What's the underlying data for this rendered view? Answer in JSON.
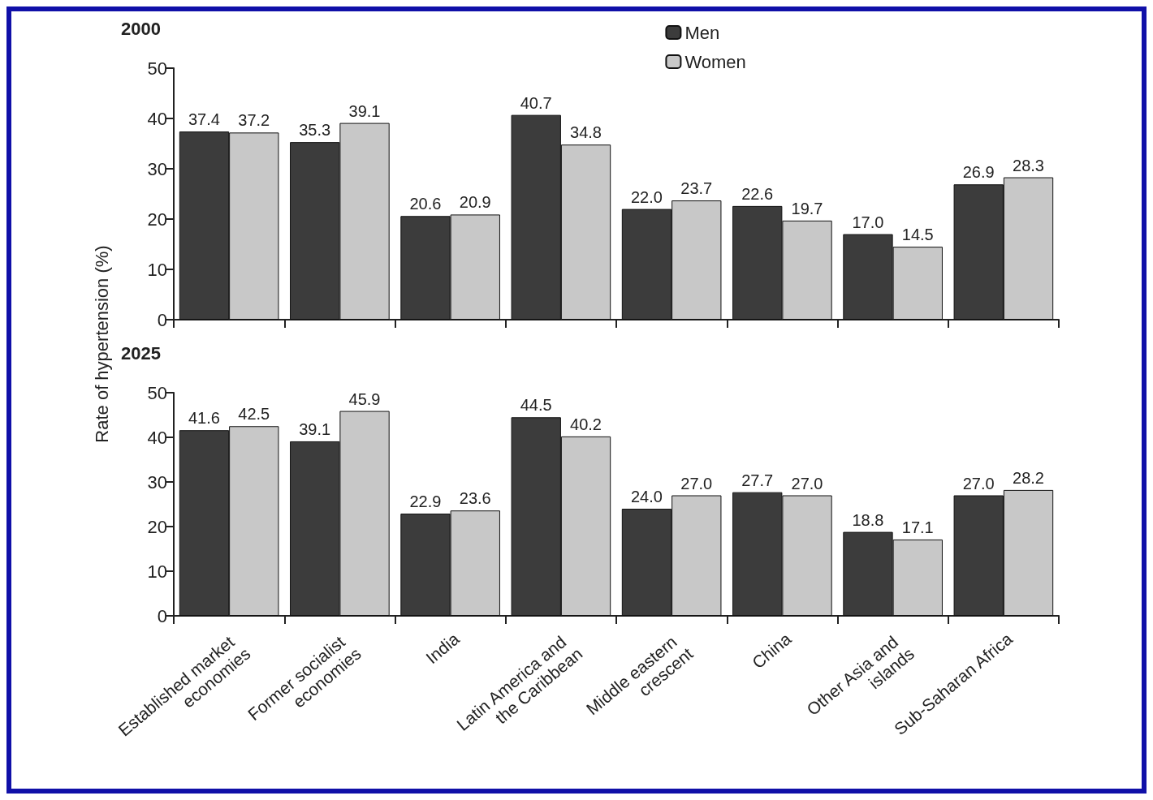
{
  "chart_data": [
    {
      "type": "bar",
      "title": "2000",
      "ylabel": "Rate of hypertension (%)",
      "categories": [
        "Established market economies",
        "Former socialist economies",
        "India",
        "Latin America and the Caribbean",
        "Middle eastern crescent",
        "China",
        "Other Asia and islands",
        "Sub-Saharan Africa"
      ],
      "series": [
        {
          "name": "Men",
          "color": "#3c3c3c",
          "values": [
            37.4,
            35.3,
            20.6,
            40.7,
            22.0,
            22.6,
            17.0,
            26.9
          ],
          "value_labels": [
            "37.4",
            "35.3",
            "20.6",
            "40.7",
            "22.0",
            "22.6",
            "17.0",
            "26.9"
          ]
        },
        {
          "name": "Women",
          "color": "#c8c8c8",
          "values": [
            37.2,
            39.1,
            20.9,
            34.8,
            23.7,
            19.7,
            14.5,
            28.3
          ],
          "value_labels": [
            "37.2",
            "39.1",
            "20.9",
            "34.8",
            "23.7",
            "19.7",
            "14.5",
            "28.3"
          ]
        }
      ],
      "ylim": [
        0,
        50
      ],
      "yticks": [
        0,
        10,
        20,
        30,
        40,
        50
      ],
      "grid": false,
      "legend": "top",
      "tick_labels": "y"
    },
    {
      "type": "bar",
      "title": "2025",
      "categories": [
        "Established market economies",
        "Former socialist economies",
        "India",
        "Latin America and the Caribbean",
        "Middle eastern crescent",
        "China",
        "Other Asia and islands",
        "Sub-Saharan Africa"
      ],
      "series": [
        {
          "color": "#3c3c3c",
          "values": [
            41.6,
            39.1,
            22.9,
            44.5,
            24.0,
            27.7,
            18.8,
            27.0
          ],
          "value_labels": [
            "41.6",
            "39.1",
            "22.9",
            "44.5",
            "24.0",
            "27.7",
            "18.8",
            "27.0"
          ]
        },
        {
          "color": "#c8c8c8",
          "values": [
            42.5,
            45.9,
            23.6,
            40.2,
            27.0,
            27.0,
            17.1,
            28.2
          ],
          "value_labels": [
            "42.5",
            "45.9",
            "23.6",
            "40.2",
            "27.0",
            "27.0",
            "17.1",
            "28.2"
          ]
        }
      ],
      "ylim": [
        0,
        50
      ],
      "yticks": [
        0,
        10,
        20,
        30,
        40,
        50
      ],
      "grid": false,
      "legend": false
    }
  ]
}
